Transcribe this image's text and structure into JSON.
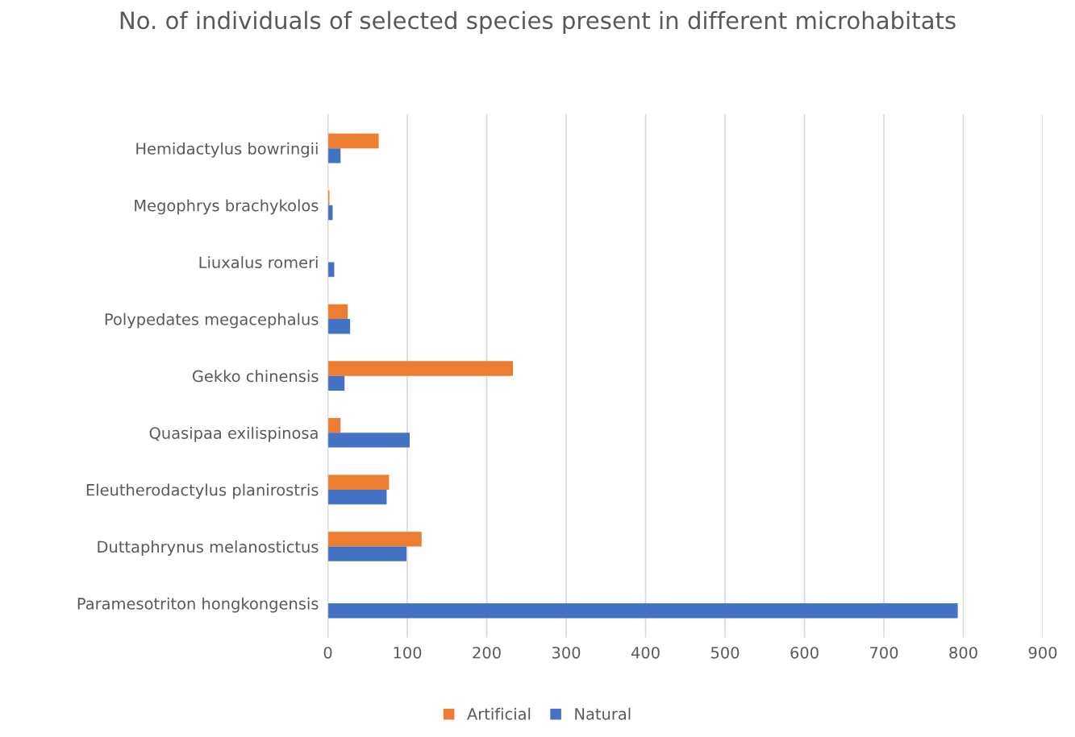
{
  "chart_data": {
    "type": "bar",
    "orientation": "horizontal",
    "title": "No. of individuals of selected species present in different microhabitats",
    "categories": [
      "Hemidactylus bowringii",
      "Megophrys brachykolos",
      "Liuxalus romeri",
      "Polypedates megacephalus",
      "Gekko chinensis",
      "Quasipaa exilispinosa",
      "Eleutherodactylus planirostris",
      "Duttaphrynus melanostictus",
      "Paramesotriton hongkongensis"
    ],
    "series": [
      {
        "name": "Artificial",
        "color": "#ed7d31",
        "values": [
          64,
          2,
          0,
          25,
          233,
          16,
          77,
          118,
          0
        ]
      },
      {
        "name": "Natural",
        "color": "#4472c4",
        "values": [
          16,
          6,
          8,
          28,
          21,
          103,
          74,
          99,
          793
        ]
      }
    ],
    "xlim": [
      0,
      900
    ],
    "xticks": [
      0,
      100,
      200,
      300,
      400,
      500,
      600,
      700,
      800,
      900
    ],
    "grid": "x",
    "legend": "bottom"
  }
}
